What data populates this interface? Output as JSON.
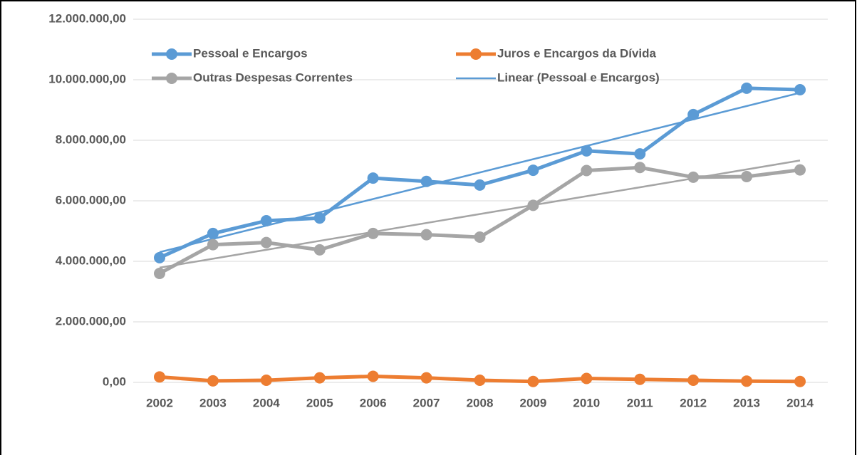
{
  "chart_data": {
    "type": "line",
    "categories": [
      "2002",
      "2003",
      "2004",
      "2005",
      "2006",
      "2007",
      "2008",
      "2009",
      "2010",
      "2011",
      "2012",
      "2013",
      "2014"
    ],
    "series": [
      {
        "name": "Pessoal e Encargos",
        "color": "#5b9bd5",
        "values": [
          4120000,
          4920000,
          5340000,
          5430000,
          6750000,
          6640000,
          6520000,
          7010000,
          7650000,
          7550000,
          8850000,
          9720000,
          9670000
        ]
      },
      {
        "name": "Juros e Encargos da Dívida",
        "color": "#ed7d31",
        "values": [
          180000,
          50000,
          70000,
          150000,
          200000,
          150000,
          70000,
          30000,
          130000,
          100000,
          70000,
          40000,
          30000
        ]
      },
      {
        "name": "Outras Despesas Correntes",
        "color": "#a5a5a5",
        "values": [
          3600000,
          4550000,
          4620000,
          4380000,
          4920000,
          4880000,
          4800000,
          5850000,
          7000000,
          7100000,
          6780000,
          6800000,
          7020000
        ]
      }
    ],
    "trendlines": [
      {
        "name": "Linear (Pessoal e Encargos)",
        "of": "Pessoal e Encargos",
        "color": "#5b9bd5"
      },
      {
        "of": "Outras Despesas Correntes",
        "color": "#a5a5a5"
      }
    ],
    "ylim": [
      0,
      12000000
    ],
    "yticks": [
      {
        "value": 0,
        "label": "0,00"
      },
      {
        "value": 2000000,
        "label": "2.000.000,00"
      },
      {
        "value": 4000000,
        "label": "4.000.000,00"
      },
      {
        "value": 6000000,
        "label": "6.000.000,00"
      },
      {
        "value": 8000000,
        "label": "8.000.000,00"
      },
      {
        "value": 10000000,
        "label": "10.000.000,00"
      },
      {
        "value": 12000000,
        "label": "12.000.000,00"
      }
    ],
    "grid": true
  }
}
